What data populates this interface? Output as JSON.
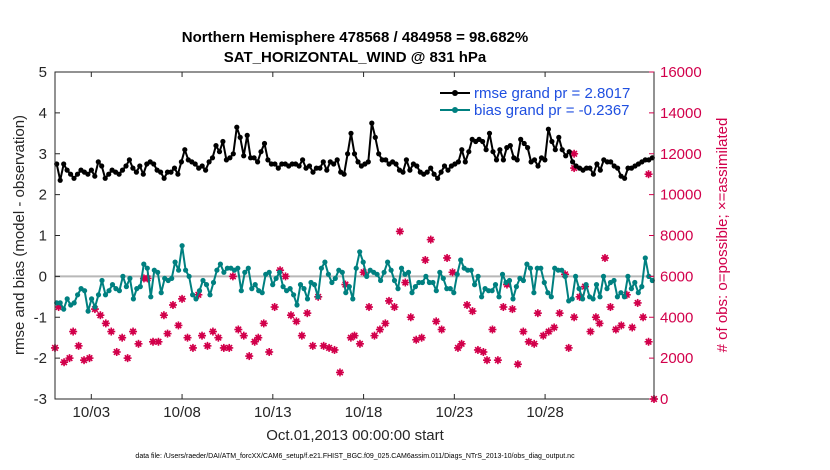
{
  "chart_data": {
    "type": "line",
    "title_line1": "Northern Hemisphere 478568 / 484958 = 98.682%",
    "title_line2": "SAT_HORIZONTAL_WIND @ 831 hPa",
    "ylabel": "rmse and bias (model - observation)",
    "ylabel_right": "# of obs: o=possible; ×=assimilated",
    "xlabel": "Oct.01,2013 00:00:00 start",
    "footer": "data file: /Users/raeder/DAI/ATM_forcXX/CAM6_setup/f.e21.FHIST_BGC.f09_025.CAM6assim.011/Diags_NTrS_2013-10/obs_diag_output.nc",
    "ylim": [
      -3,
      5
    ],
    "yticks": [
      "-3",
      "-2",
      "-1",
      "0",
      "1",
      "2",
      "3",
      "4",
      "5"
    ],
    "ylim_right": [
      0,
      16000
    ],
    "yticks_right": [
      "0",
      "2000",
      "4000",
      "6000",
      "8000",
      "10000",
      "12000",
      "14000",
      "16000"
    ],
    "x_range_days": [
      0,
      33
    ],
    "xticks": [
      {
        "day": 2,
        "label": "10/03"
      },
      {
        "day": 7,
        "label": "10/08"
      },
      {
        "day": 12,
        "label": "10/13"
      },
      {
        "day": 17,
        "label": "10/18"
      },
      {
        "day": 22,
        "label": "10/23"
      },
      {
        "day": 27,
        "label": "10/28"
      }
    ],
    "legend_position": "top-right",
    "zero_line": 0,
    "series": [
      {
        "name": "rmse grand pr = 2.8017",
        "color": "#000000",
        "values": [
          2.75,
          2.35,
          2.75,
          2.6,
          2.5,
          2.4,
          2.5,
          2.6,
          2.55,
          2.5,
          2.6,
          2.45,
          2.8,
          2.7,
          2.4,
          2.5,
          2.6,
          2.55,
          2.5,
          2.6,
          2.7,
          2.85,
          2.65,
          2.55,
          2.7,
          2.5,
          2.75,
          2.8,
          2.75,
          2.6,
          2.55,
          2.4,
          2.55,
          2.55,
          2.65,
          2.5,
          2.8,
          3.1,
          2.85,
          2.8,
          2.75,
          2.65,
          2.7,
          2.6,
          2.8,
          2.9,
          3.2,
          3.05,
          3.3,
          2.85,
          2.9,
          3.0,
          3.65,
          3.4,
          2.95,
          3.45,
          2.9,
          2.9,
          2.8,
          3.05,
          3.25,
          2.85,
          2.75,
          2.75,
          2.65,
          2.75,
          2.75,
          2.7,
          2.75,
          2.75,
          2.7,
          2.85,
          2.65,
          2.7,
          2.55,
          2.65,
          2.65,
          2.8,
          2.6,
          2.8,
          2.75,
          2.85,
          2.55,
          2.5,
          3.0,
          3.5,
          3.0,
          2.8,
          2.7,
          2.75,
          2.8,
          3.75,
          3.4,
          3.0,
          2.85,
          2.85,
          2.75,
          2.8,
          2.75,
          2.6,
          2.55,
          2.85,
          2.6,
          2.75,
          2.7,
          2.55,
          2.5,
          2.55,
          2.65,
          2.5,
          2.4,
          2.55,
          2.7,
          2.6,
          2.7,
          2.75,
          2.8,
          3.1,
          2.8,
          3.05,
          3.35,
          3.3,
          3.35,
          3.3,
          3.1,
          3.5,
          3.05,
          2.85,
          3.1,
          2.85,
          3.15,
          3.2,
          2.9,
          2.85,
          3.35,
          3.25,
          3.15,
          2.8,
          2.85,
          2.7,
          2.9,
          2.85,
          3.6,
          3.3,
          3.1,
          3.4,
          3.1,
          2.95,
          3.05,
          2.8,
          2.7,
          2.65,
          2.6,
          2.65,
          2.65,
          2.5,
          2.75,
          2.6,
          2.85,
          2.8,
          2.8,
          2.7,
          2.65,
          2.45,
          2.4,
          2.65,
          2.65,
          2.7,
          2.75,
          2.8,
          2.85,
          2.85,
          2.9
        ]
      },
      {
        "name": "bias grand pr = -0.2367",
        "color": "#008080",
        "values": [
          -0.65,
          -0.65,
          -0.8,
          -0.55,
          -0.7,
          -0.65,
          -0.45,
          -0.3,
          -0.35,
          -0.85,
          -0.55,
          -0.75,
          -0.45,
          -0.1,
          -0.45,
          -0.35,
          -0.2,
          -0.3,
          -0.35,
          0.0,
          -0.25,
          -0.05,
          -0.55,
          -0.3,
          -0.25,
          0.3,
          0.2,
          -0.5,
          0.15,
          0.1,
          -0.4,
          -0.05,
          -0.1,
          -0.05,
          0.35,
          0.15,
          0.75,
          0.15,
          0.0,
          -0.45,
          -0.55,
          -0.35,
          -0.1,
          -0.2,
          -0.45,
          -0.15,
          0.15,
          0.3,
          0.1,
          0.2,
          0.2,
          0.15,
          0.2,
          -0.35,
          0.1,
          0.2,
          -0.3,
          -0.2,
          -0.35,
          -0.4,
          0.05,
          0.1,
          -0.2,
          -0.05,
          0.1,
          -0.25,
          -0.35,
          -0.3,
          -0.45,
          -0.7,
          -0.2,
          -0.3,
          -0.55,
          -0.15,
          -0.2,
          -0.5,
          0.2,
          0.35,
          0.05,
          -0.15,
          -0.05,
          0.15,
          0.1,
          -0.4,
          -0.25,
          -0.55,
          0.2,
          0.6,
          0.35,
          0.0,
          0.15,
          0.1,
          0.05,
          -0.1,
          0.1,
          0.35,
          0.15,
          -0.1,
          -0.3,
          0.2,
          0.05,
          0.1,
          -0.4,
          -0.25,
          -0.15,
          -0.15,
          0.0,
          -0.15,
          -0.15,
          -0.35,
          0.1,
          -0.05,
          -0.3,
          -0.3,
          -0.4,
          0.05,
          0.4,
          0.2,
          0.15,
          0.15,
          -0.2,
          0.0,
          -0.5,
          -0.3,
          -0.35,
          -0.35,
          -0.2,
          -0.5,
          0.05,
          -0.15,
          -0.1,
          -0.55,
          -0.25,
          -0.05,
          -0.1,
          0.3,
          0.2,
          -0.4,
          0.2,
          0.2,
          -0.15,
          -0.4,
          -0.5,
          0.2,
          0.15,
          0.15,
          0.0,
          -0.6,
          -0.55,
          0.0,
          -0.3,
          -0.55,
          -0.2,
          -0.5,
          -0.55,
          -0.2,
          -0.5,
          0.0,
          -0.3,
          -0.15,
          -0.1,
          -0.5,
          -0.4,
          -0.5,
          0.0,
          -0.3,
          -0.15,
          -0.4,
          -0.25,
          0.45,
          0.0,
          -0.1
        ]
      }
    ],
    "obs_counts": [
      [
        0.0,
        2500
      ],
      [
        0.2,
        4500
      ],
      [
        0.5,
        1800
      ],
      [
        0.8,
        2000
      ],
      [
        1.0,
        3300
      ],
      [
        1.3,
        2600
      ],
      [
        1.6,
        1900
      ],
      [
        1.9,
        2000
      ],
      [
        2.2,
        4400
      ],
      [
        2.5,
        4100
      ],
      [
        2.8,
        3700
      ],
      [
        3.1,
        3300
      ],
      [
        3.4,
        2300
      ],
      [
        3.7,
        3000
      ],
      [
        4.0,
        2000
      ],
      [
        4.3,
        3300
      ],
      [
        4.6,
        2700
      ],
      [
        4.9,
        5900
      ],
      [
        5.1,
        5900
      ],
      [
        5.4,
        2800
      ],
      [
        5.7,
        2800
      ],
      [
        6.0,
        4100
      ],
      [
        6.2,
        3200
      ],
      [
        6.5,
        4600
      ],
      [
        6.8,
        3600
      ],
      [
        7.0,
        4900
      ],
      [
        7.3,
        3000
      ],
      [
        7.6,
        2500
      ],
      [
        7.9,
        5100
      ],
      [
        8.1,
        3100
      ],
      [
        8.4,
        2600
      ],
      [
        8.7,
        3300
      ],
      [
        9.0,
        3000
      ],
      [
        9.3,
        2500
      ],
      [
        9.6,
        2500
      ],
      [
        9.8,
        6000
      ],
      [
        10.1,
        3400
      ],
      [
        10.4,
        3100
      ],
      [
        10.7,
        2100
      ],
      [
        11.0,
        2800
      ],
      [
        11.2,
        3000
      ],
      [
        11.5,
        3700
      ],
      [
        11.8,
        2300
      ],
      [
        12.1,
        4500
      ],
      [
        12.4,
        6300
      ],
      [
        12.7,
        6000
      ],
      [
        13.0,
        4100
      ],
      [
        13.3,
        3800
      ],
      [
        13.6,
        3100
      ],
      [
        13.9,
        4200
      ],
      [
        14.2,
        2600
      ],
      [
        14.5,
        5000
      ],
      [
        14.8,
        2600
      ],
      [
        15.1,
        2500
      ],
      [
        15.4,
        2400
      ],
      [
        15.7,
        1300
      ],
      [
        16.0,
        5600
      ],
      [
        16.3,
        3000
      ],
      [
        16.5,
        3100
      ],
      [
        16.8,
        2700
      ],
      [
        17.0,
        6200
      ],
      [
        17.3,
        4500
      ],
      [
        17.6,
        3100
      ],
      [
        17.9,
        3400
      ],
      [
        18.2,
        3700
      ],
      [
        18.4,
        4800
      ],
      [
        18.7,
        4500
      ],
      [
        19.0,
        8200
      ],
      [
        19.3,
        5700
      ],
      [
        19.6,
        4000
      ],
      [
        19.9,
        2900
      ],
      [
        20.2,
        3000
      ],
      [
        20.4,
        6800
      ],
      [
        20.7,
        7800
      ],
      [
        21.0,
        3800
      ],
      [
        21.3,
        3400
      ],
      [
        21.6,
        6900
      ],
      [
        21.9,
        6200
      ],
      [
        22.2,
        2500
      ],
      [
        22.4,
        2700
      ],
      [
        22.7,
        4600
      ],
      [
        23.0,
        4300
      ],
      [
        23.3,
        2400
      ],
      [
        23.6,
        2300
      ],
      [
        23.8,
        1900
      ],
      [
        24.1,
        3400
      ],
      [
        24.4,
        1900
      ],
      [
        24.7,
        4500
      ],
      [
        24.9,
        5600
      ],
      [
        25.2,
        4400
      ],
      [
        25.5,
        1700
      ],
      [
        25.8,
        3300
      ],
      [
        26.1,
        2800
      ],
      [
        26.4,
        2700
      ],
      [
        26.6,
        4200
      ],
      [
        26.9,
        3100
      ],
      [
        27.2,
        3300
      ],
      [
        27.5,
        3500
      ],
      [
        27.8,
        4200
      ],
      [
        28.1,
        6100
      ],
      [
        28.3,
        2500
      ],
      [
        28.6,
        4000
      ],
      [
        28.9,
        5000
      ],
      [
        29.2,
        5500
      ],
      [
        29.5,
        3300
      ],
      [
        29.8,
        4000
      ],
      [
        30.0,
        3700
      ],
      [
        30.3,
        6900
      ],
      [
        30.6,
        4500
      ],
      [
        30.9,
        3400
      ],
      [
        31.2,
        3600
      ],
      [
        31.5,
        5100
      ],
      [
        31.8,
        3500
      ],
      [
        32.1,
        4700
      ],
      [
        32.4,
        4000
      ],
      [
        32.7,
        2800
      ]
    ],
    "obs_markers_extra": [
      [
        32.7,
        11000
      ],
      [
        28.6,
        12000
      ],
      [
        28.6,
        11300
      ],
      [
        33.0,
        0
      ]
    ]
  }
}
